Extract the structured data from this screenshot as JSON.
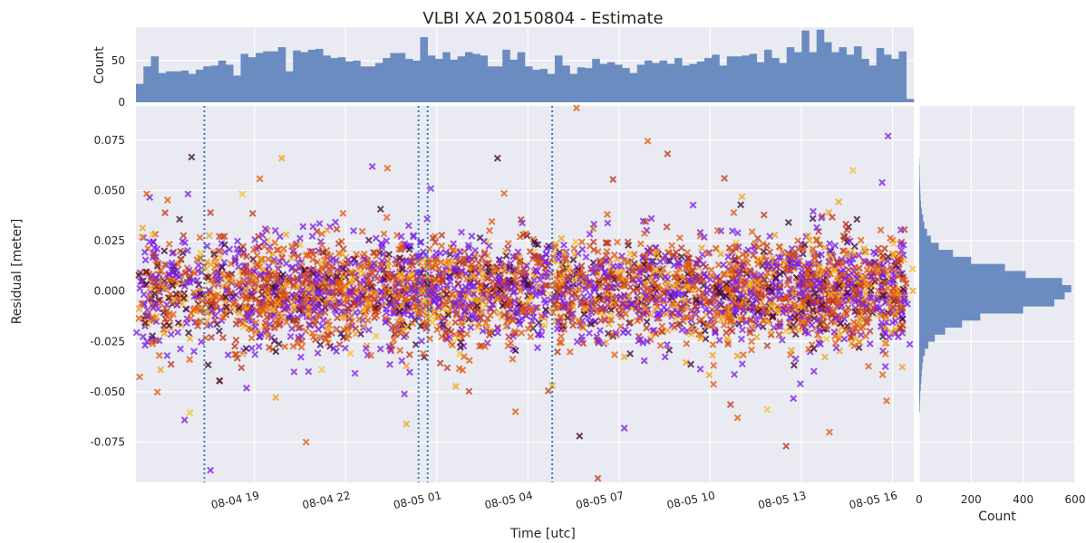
{
  "chart_data": [
    {
      "type": "scatter",
      "title": "VLBI XA 20150804 - Estimate",
      "xlabel": "Time [utc]",
      "ylabel": "Residual [meter]",
      "xlim_hours": [
        15.1,
        40.7
      ],
      "ylim": [
        -0.095,
        0.092
      ],
      "x_ticks": [
        "08-04 19",
        "08-04 22",
        "08-05 01",
        "08-05 04",
        "08-05 07",
        "08-05 10",
        "08-05 13",
        "08-05 16"
      ],
      "y_ticks": [
        "0.075",
        "0.050",
        "0.025",
        "0.000",
        "-0.025",
        "-0.050",
        "-0.075"
      ],
      "grid": true,
      "marker": "x",
      "series_colors": [
        "#7a1fe6",
        "#e05a0d",
        "#c0361f",
        "#f0a21a",
        "#3d0a3e",
        "#f5c226"
      ],
      "series_weights": [
        0.32,
        0.28,
        0.14,
        0.12,
        0.09,
        0.05
      ],
      "vertical_lines_hours": [
        17.35,
        24.4,
        24.7,
        28.8
      ],
      "vertical_line_color": "#2b7bc0",
      "residual_distribution": {
        "mean": 0.0,
        "std": 0.013,
        "n_points": 4200
      },
      "notable_points": [
        {
          "x": 17.55,
          "y": -0.089
        },
        {
          "x": 29.6,
          "y": 0.091
        },
        {
          "x": 30.3,
          "y": -0.093
        },
        {
          "x": 19.9,
          "y": 0.066
        },
        {
          "x": 27.0,
          "y": 0.066
        },
        {
          "x": 38.7,
          "y": 0.06
        },
        {
          "x": 16.7,
          "y": -0.064
        },
        {
          "x": 20.7,
          "y": -0.075
        },
        {
          "x": 36.5,
          "y": -0.077
        },
        {
          "x": 24.0,
          "y": -0.066
        },
        {
          "x": 29.7,
          "y": -0.072
        }
      ]
    },
    {
      "type": "bar",
      "title": "",
      "xlabel": "",
      "ylabel": "Count",
      "y_ticks": [
        "50",
        "0"
      ],
      "ylim": [
        0,
        90
      ],
      "color": "#6b8cc0",
      "values": [
        22,
        43,
        55,
        35,
        37,
        37,
        38,
        34,
        39,
        43,
        44,
        50,
        45,
        32,
        58,
        54,
        59,
        61,
        61,
        66,
        37,
        62,
        60,
        63,
        64,
        56,
        53,
        54,
        49,
        50,
        43,
        43,
        47,
        53,
        59,
        59,
        52,
        50,
        78,
        56,
        52,
        60,
        51,
        55,
        60,
        58,
        56,
        43,
        43,
        63,
        51,
        60,
        43,
        39,
        40,
        34,
        56,
        44,
        34,
        42,
        41,
        52,
        46,
        48,
        45,
        41,
        35,
        45,
        50,
        47,
        50,
        46,
        53,
        44,
        46,
        49,
        53,
        57,
        44,
        55,
        55,
        56,
        58,
        48,
        63,
        53,
        47,
        66,
        60,
        86,
        60,
        87,
        72,
        60,
        66,
        57,
        67,
        52,
        44,
        65,
        57,
        52,
        61,
        4
      ]
    },
    {
      "type": "bar",
      "orientation": "horizontal",
      "title": "",
      "xlabel": "Count",
      "ylabel": "",
      "x_ticks": [
        "0",
        "200",
        "400",
        "600"
      ],
      "xlim": [
        0,
        600
      ],
      "color": "#6b8cc0",
      "bin_edges": [
        -0.06,
        -0.0565,
        -0.053,
        -0.0495,
        -0.046,
        -0.0425,
        -0.039,
        -0.0355,
        -0.032,
        -0.0285,
        -0.025,
        -0.0215,
        -0.018,
        -0.0145,
        -0.011,
        -0.0075,
        -0.004,
        -0.0005,
        0.003,
        0.0065,
        0.01,
        0.0135,
        0.017,
        0.0205,
        0.024,
        0.0275,
        0.031,
        0.0345,
        0.038,
        0.0415,
        0.045,
        0.0485,
        0.052,
        0.0555,
        0.059,
        0.0625,
        0.066
      ],
      "values": [
        2,
        3,
        4,
        6,
        8,
        10,
        12,
        15,
        22,
        35,
        60,
        100,
        165,
        235,
        400,
        520,
        560,
        585,
        550,
        410,
        330,
        200,
        130,
        75,
        45,
        30,
        20,
        15,
        10,
        7,
        5,
        4,
        3,
        2,
        2,
        1
      ]
    }
  ]
}
